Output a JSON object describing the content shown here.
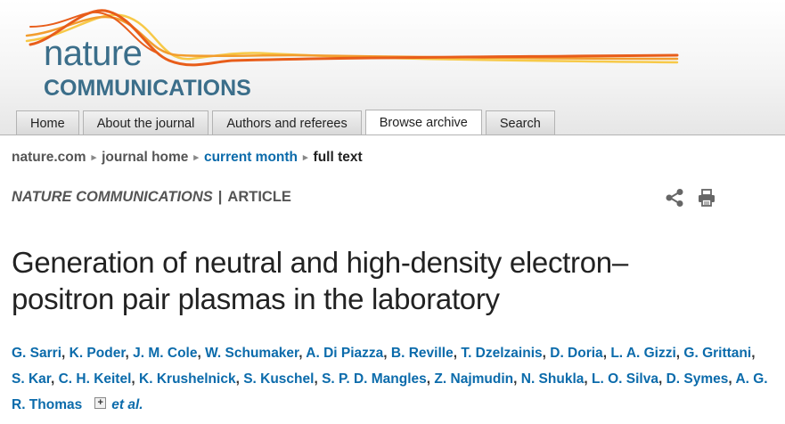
{
  "logo": {
    "word_top": "nature",
    "word_bottom": "COMMUNICATIONS",
    "brand_color": "#3b6e8a",
    "wave_colors": [
      "#e85d1a",
      "#f29d2e",
      "#f7c948"
    ]
  },
  "nav": {
    "tabs": [
      {
        "label": "Home",
        "active": false
      },
      {
        "label": "About the journal",
        "active": false
      },
      {
        "label": "Authors and referees",
        "active": false
      },
      {
        "label": "Browse archive",
        "active": true
      },
      {
        "label": "Search",
        "active": false
      }
    ]
  },
  "breadcrumb": {
    "items": [
      "nature.com",
      "journal home",
      "current month",
      "full text"
    ],
    "separator": "▸"
  },
  "article_meta": {
    "journal": "NATURE COMMUNICATIONS",
    "divider": "|",
    "type": "ARTICLE"
  },
  "tools": {
    "share_icon": "share-icon",
    "print_icon": "print-icon"
  },
  "article": {
    "title_line1": "Generation of neutral and high-density electron–",
    "title_line2": "positron pair plasmas in the laboratory",
    "authors": [
      "G. Sarri",
      "K. Poder",
      "J. M. Cole",
      "W. Schumaker",
      "A. Di Piazza",
      "B. Reville",
      "T. Dzelzainis",
      "D. Doria",
      "L. A. Gizzi",
      "G. Grittani",
      "S. Kar",
      "C. H. Keitel",
      "K. Krushelnick",
      "S. Kuschel",
      "S. P. D. Mangles",
      "Z. Najmudin",
      "N. Shukla",
      "L. O. Silva",
      "D. Symes",
      "A. G. R. Thomas"
    ],
    "expand_label": "+",
    "et_al": "et al."
  },
  "colors": {
    "link": "#0b6bab",
    "text": "#222222"
  }
}
